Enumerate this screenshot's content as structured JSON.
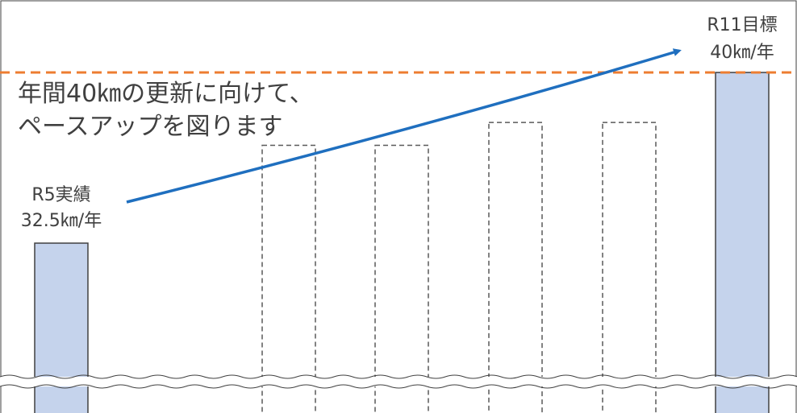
{
  "chart_data": {
    "type": "bar",
    "categories": [
      "R5",
      "",
      "",
      "",
      "",
      "R11"
    ],
    "values": [
      32.5,
      null,
      null,
      null,
      null,
      40
    ],
    "projected_values": [
      null,
      36.8,
      36.8,
      37.8,
      37.8,
      null
    ],
    "unit": "km/年",
    "target_value": 40,
    "title": "",
    "xlabel": "",
    "ylabel": "",
    "axis_broken": true,
    "grid": false,
    "legend": "none"
  },
  "labels": {
    "first_bar": [
      "R5実績",
      "32.5㎞/年"
    ],
    "last_bar": [
      "R11目標",
      "40㎞/年"
    ]
  },
  "annotation": {
    "lines": [
      "年間40㎞の更新に向けて、",
      "ペースアップを図ります"
    ]
  },
  "colors": {
    "actual_bar": "#c5d3ec",
    "bar_stroke": "#404040",
    "target_line": "#ed7d31",
    "arrow": "#1f6fbf",
    "projected_stroke": "#595959",
    "text": "#404040"
  }
}
